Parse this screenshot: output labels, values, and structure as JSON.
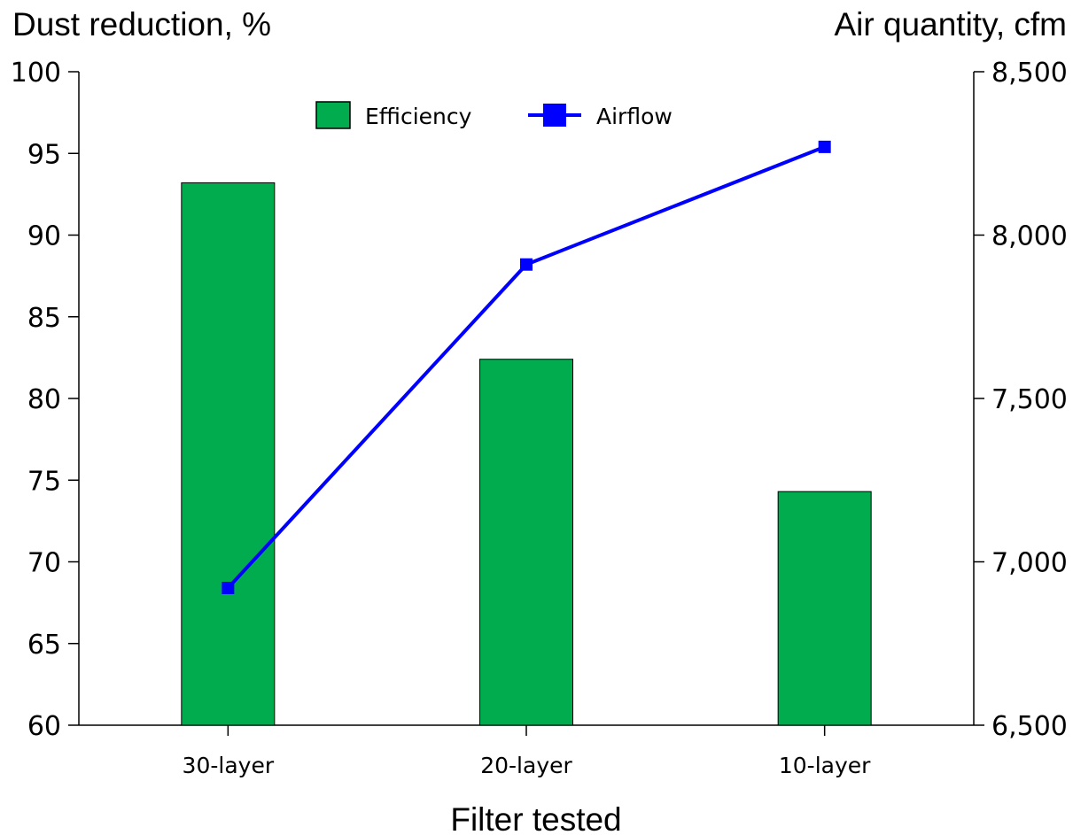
{
  "chart_data": {
    "type": "bar+line",
    "categories": [
      "30-layer",
      "20-layer",
      "10-layer"
    ],
    "series": [
      {
        "name": "Efficiency",
        "kind": "bar",
        "axis": "left",
        "color": "#00ac4e",
        "values": [
          93.2,
          82.4,
          74.3
        ]
      },
      {
        "name": "Airflow",
        "kind": "line",
        "axis": "right",
        "color": "#0000ff",
        "values": [
          6920,
          7910,
          8270
        ]
      }
    ],
    "left_axis": {
      "label": "Dust reduction, %",
      "min": 60,
      "max": 100,
      "ticks": [
        "60",
        "65",
        "70",
        "75",
        "80",
        "85",
        "90",
        "95",
        "100"
      ]
    },
    "right_axis": {
      "label": "Air quantity, cfm",
      "min": 6500,
      "max": 8500,
      "ticks": [
        "6,500",
        "7,000",
        "7,500",
        "8,000",
        "8,500"
      ]
    },
    "xlabel": "Filter tested",
    "legend": {
      "placement": "top-center",
      "items": [
        "Efficiency",
        "Airflow"
      ]
    },
    "grid": false
  }
}
